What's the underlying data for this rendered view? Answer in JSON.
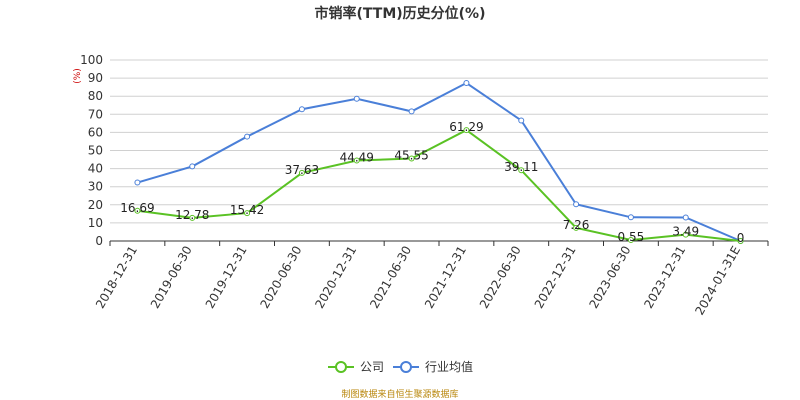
{
  "chart_data": {
    "type": "line",
    "title": "市销率(TTM)历史分位(%)",
    "unit_label": "(%)",
    "categories": [
      "2018-12-31",
      "2019-06-30",
      "2019-12-31",
      "2020-06-30",
      "2020-12-31",
      "2021-06-30",
      "2021-12-31",
      "2022-06-30",
      "2022-12-31",
      "2023-06-30",
      "2023-12-31",
      "2024-01-31E"
    ],
    "ylim": [
      0,
      100
    ],
    "yticks": [
      0,
      10,
      20,
      30,
      40,
      50,
      60,
      70,
      80,
      90,
      100
    ],
    "grid": true,
    "legend_position": "bottom",
    "series": [
      {
        "name": "公司",
        "color": "#5ac224",
        "values": [
          16.69,
          12.78,
          15.42,
          37.63,
          44.49,
          45.55,
          61.29,
          39.11,
          7.26,
          0.55,
          3.49,
          0
        ],
        "labels": [
          "16.69",
          "12.78",
          "15.42",
          "37.63",
          "44.49",
          "45.55",
          "61.29",
          "39.11",
          "7.26",
          "0.55",
          "3.49",
          "0"
        ]
      },
      {
        "name": "行业均值",
        "color": "#4a7fd8",
        "values": [
          32.3,
          41.2,
          57.7,
          72.8,
          78.6,
          71.6,
          87.3,
          66.6,
          20.3,
          13.1,
          13.0,
          0
        ]
      }
    ],
    "source": "制图数据来自恒生聚源数据库"
  }
}
